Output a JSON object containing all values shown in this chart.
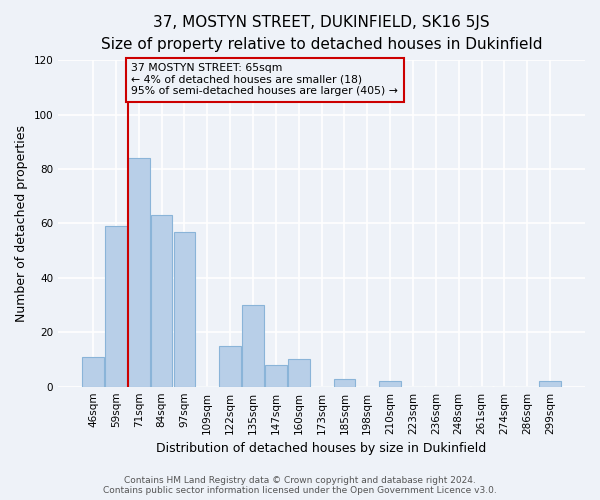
{
  "title": "37, MOSTYN STREET, DUKINFIELD, SK16 5JS",
  "subtitle": "Size of property relative to detached houses in Dukinfield",
  "xlabel": "Distribution of detached houses by size in Dukinfield",
  "ylabel": "Number of detached properties",
  "bar_labels": [
    "46sqm",
    "59sqm",
    "71sqm",
    "84sqm",
    "97sqm",
    "109sqm",
    "122sqm",
    "135sqm",
    "147sqm",
    "160sqm",
    "173sqm",
    "185sqm",
    "198sqm",
    "210sqm",
    "223sqm",
    "236sqm",
    "248sqm",
    "261sqm",
    "274sqm",
    "286sqm",
    "299sqm"
  ],
  "bar_values": [
    11,
    59,
    84,
    63,
    57,
    0,
    15,
    30,
    8,
    10,
    0,
    3,
    0,
    2,
    0,
    0,
    0,
    0,
    0,
    0,
    2
  ],
  "bar_color": "#b8cfe8",
  "bar_edge_color": "#8ab4d8",
  "vline_color": "#cc0000",
  "annotation_box_text": "37 MOSTYN STREET: 65sqm\n← 4% of detached houses are smaller (18)\n95% of semi-detached houses are larger (405) →",
  "annotation_box_color": "#cc0000",
  "ylim": [
    0,
    120
  ],
  "yticks": [
    0,
    20,
    40,
    60,
    80,
    100,
    120
  ],
  "footer_line1": "Contains HM Land Registry data © Crown copyright and database right 2024.",
  "footer_line2": "Contains public sector information licensed under the Open Government Licence v3.0.",
  "background_color": "#eef2f8",
  "grid_color": "#ffffff",
  "title_fontsize": 11,
  "axis_label_fontsize": 9,
  "tick_fontsize": 7.5,
  "footer_fontsize": 6.5
}
